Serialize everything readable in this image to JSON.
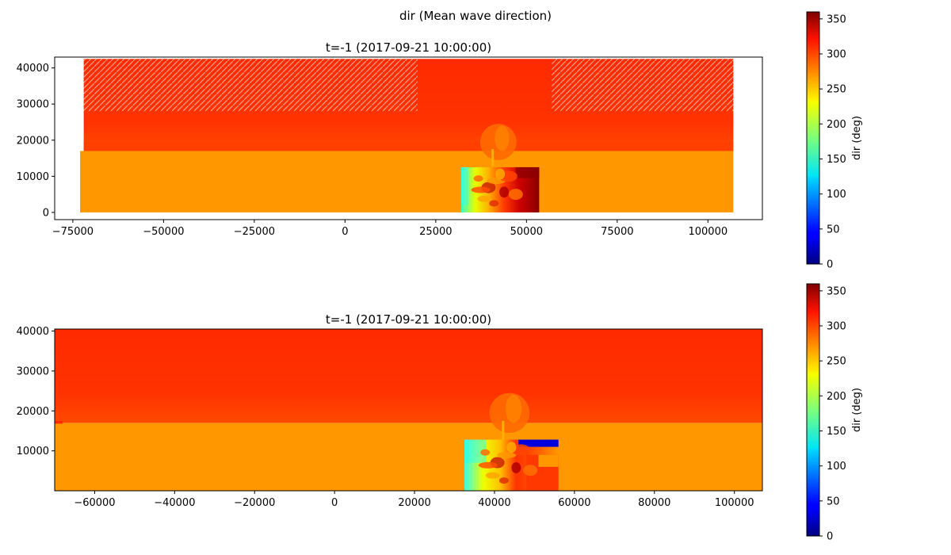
{
  "figure": {
    "suptitle": "dir (Mean wave direction)"
  },
  "colors": {
    "orange": "#ff9800",
    "red_orange": "#ff3300",
    "red": "#ff2200",
    "dark_red": "#8b0000",
    "blue": "#0000dd",
    "cyan": "#33ffee",
    "yellow": "#eeff00"
  },
  "chart_data": [
    {
      "type": "heatmap",
      "title": "t=-1 (2017-09-21 10:00:00)",
      "xlim": [
        -80000,
        115000
      ],
      "ylim": [
        -2000,
        43000
      ],
      "xticks": [
        -75000,
        -50000,
        -25000,
        0,
        25000,
        50000,
        75000,
        100000
      ],
      "xtick_labels": [
        "−75000",
        "−50000",
        "−25000",
        "0",
        "25000",
        "50000",
        "75000",
        "100000"
      ],
      "yticks": [
        0,
        10000,
        20000,
        30000,
        40000
      ],
      "ytick_labels": [
        "0",
        "10000",
        "20000",
        "30000",
        "40000"
      ],
      "regions": [
        {
          "name": "southern domain",
          "x0": -73000,
          "x1": 107000,
          "y0": 0,
          "y1": 17000,
          "value": 275
        },
        {
          "name": "northern domain",
          "x0": -72000,
          "x1": 107000,
          "y0": 17000,
          "y1": 42500,
          "value": 305
        },
        {
          "name": "nested grid",
          "x0": 32000,
          "x1": 53500,
          "y0": 0,
          "y1": 12500,
          "value": 300
        }
      ],
      "colorbar": {
        "label": "dir (deg)",
        "range": [
          0,
          360
        ],
        "ticks": [
          0,
          50,
          100,
          150,
          200,
          250,
          300,
          350
        ],
        "tick_labels": [
          "0",
          "50",
          "100",
          "150",
          "200",
          "250",
          "300",
          "350"
        ]
      }
    },
    {
      "type": "heatmap",
      "title": "t=-1 (2017-09-21 10:00:00)",
      "xlim": [
        -70000,
        107000
      ],
      "ylim": [
        0,
        40500
      ],
      "xticks": [
        -60000,
        -40000,
        -20000,
        0,
        20000,
        40000,
        60000,
        80000,
        100000
      ],
      "xtick_labels": [
        "−60000",
        "−40000",
        "−20000",
        "0",
        "20000",
        "40000",
        "60000",
        "80000",
        "100000"
      ],
      "yticks": [
        10000,
        20000,
        30000,
        40000
      ],
      "ytick_labels": [
        "10000",
        "20000",
        "30000",
        "40000"
      ],
      "regions": [
        {
          "name": "southern domain",
          "x0": -70000,
          "x1": 107000,
          "y0": 0,
          "y1": 17000,
          "value": 275
        },
        {
          "name": "northern domain",
          "x0": -70000,
          "x1": 107000,
          "y0": 17000,
          "y1": 40500,
          "value": 305
        },
        {
          "name": "nested grid",
          "x0": 32500,
          "x1": 56000,
          "y0": 0,
          "y1": 12800,
          "value": 300
        }
      ],
      "colorbar": {
        "label": "dir (deg)",
        "range": [
          0,
          360
        ],
        "ticks": [
          0,
          50,
          100,
          150,
          200,
          250,
          300,
          350
        ],
        "tick_labels": [
          "0",
          "50",
          "100",
          "150",
          "200",
          "250",
          "300",
          "350"
        ]
      }
    }
  ]
}
